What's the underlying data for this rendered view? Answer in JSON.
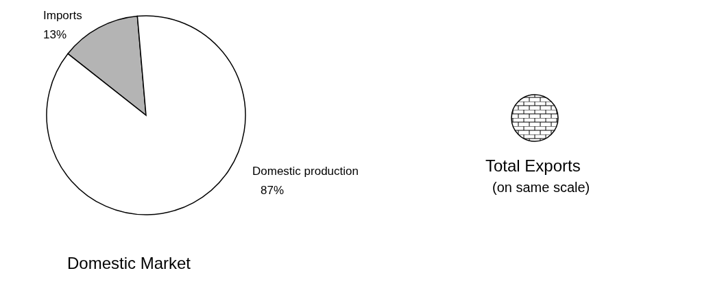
{
  "chart_data": [
    {
      "type": "pie",
      "title": "Domestic Market",
      "categories": [
        "Imports",
        "Domestic production"
      ],
      "values": [
        13,
        87
      ],
      "colors": [
        "#b4b4b4",
        "#ffffff"
      ],
      "value_labels": [
        "13%",
        "87%"
      ]
    },
    {
      "type": "other",
      "title": "Total Exports",
      "subtitle": "(on same scale)"
    }
  ]
}
